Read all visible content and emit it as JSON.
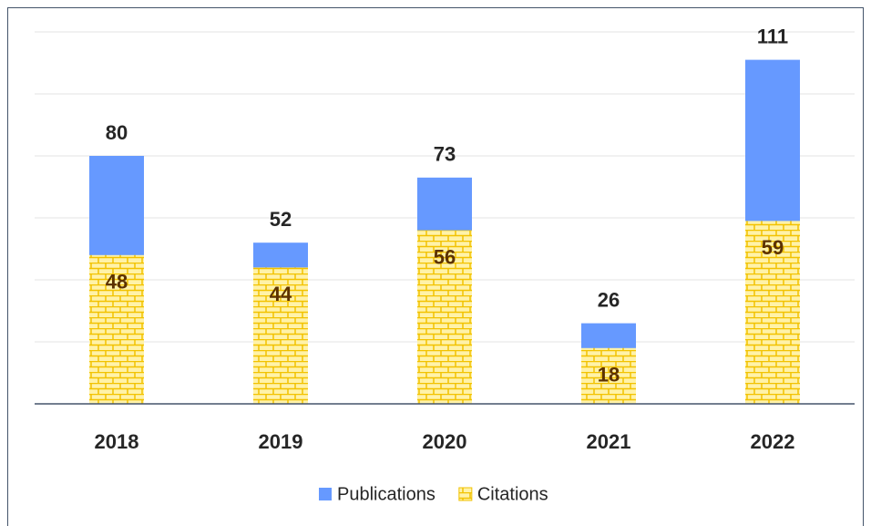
{
  "chart_data": {
    "type": "bar",
    "overlap": true,
    "categories": [
      "2018",
      "2019",
      "2020",
      "2021",
      "2022"
    ],
    "series": [
      {
        "name": "Publications",
        "color": "#6699ff",
        "values": [
          80,
          52,
          73,
          26,
          111
        ]
      },
      {
        "name": "Citations",
        "color": "#ffe680",
        "pattern": "brick",
        "values": [
          48,
          44,
          56,
          18,
          59
        ]
      }
    ],
    "ylim": [
      0,
      120
    ],
    "yticks": [
      0,
      20,
      40,
      60,
      80,
      100,
      120
    ],
    "grid": true,
    "legend": "bottom"
  }
}
